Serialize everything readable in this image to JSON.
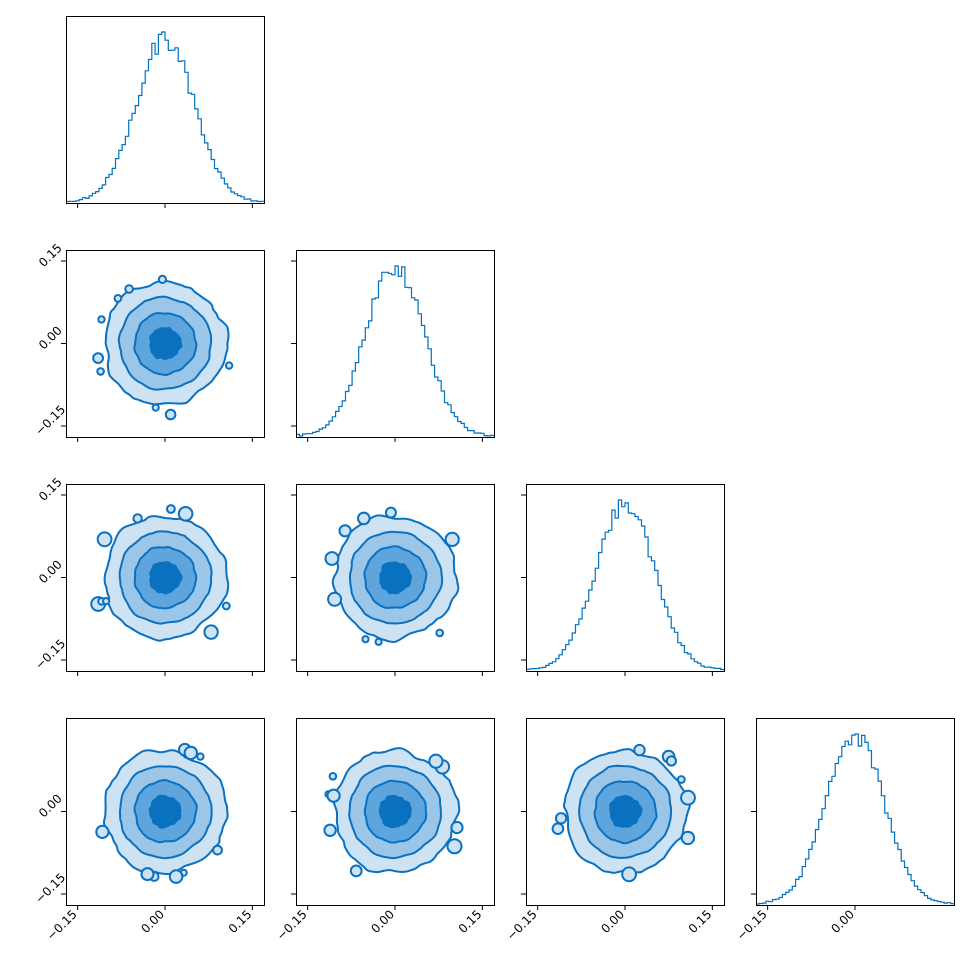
{
  "chart_data": {
    "type": "corner",
    "n_params": 4,
    "tick_values": [
      -0.15,
      0.0,
      0.15
    ],
    "tick_labels": [
      "−0.15",
      "0.00",
      "0.15"
    ],
    "axis_range": [
      -0.17,
      0.17
    ],
    "last_column_tick_labels": [
      "−0.15",
      "0.00"
    ],
    "bottom_row_y_tick_labels": [
      "−0.15",
      "0.00"
    ],
    "histogram": {
      "distribution": "normal",
      "mean": 0.0,
      "sd": 0.05,
      "bins": 60
    },
    "contour_levels_sigma": [
      0.5,
      1.0,
      1.5,
      2.0
    ],
    "colors": {
      "line": "#0072c1",
      "level_fills": [
        "#cde2f3",
        "#9cc6e8",
        "#5da5dc",
        "#0a70c0"
      ]
    }
  }
}
